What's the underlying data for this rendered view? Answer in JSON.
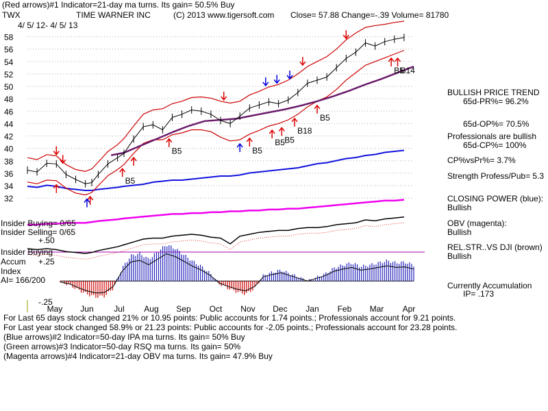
{
  "header": {
    "red_arrows_note": "(Red arrows)#1 Indicator=21-day ma turns. Its gain= 50.5% Buy",
    "ticker": "TWX",
    "company": "TIME WARNER INC",
    "copyright": "(C) 2013 www.tigersoft.com",
    "quote": "Close= 57.88 Change=-.39 Volume= 81780",
    "date_range": "4/ 5/ 12- 4/ 5/ 13"
  },
  "right_panel": {
    "trend_title": "BULLISH PRICE TREND",
    "pr": "65d-PR%= 96.2%",
    "op": "65d-OP%= 70.5%",
    "pros_line": "Professionals are bullish",
    "cp": "65d-CP%= 100%",
    "cpvspr": "CP%vsPr%= 3.7%",
    "strength": "Strength Profess/Pub= 5.3",
    "closing_power_label": "CLOSING POWER (blue):",
    "closing_power_value": "Bullish",
    "obv_label": "OBV (magenta):",
    "obv_value": "Bullish",
    "relstr_label": "REL.STR..VS DJI (brown)",
    "relstr_value": "Bullish",
    "accum_label": "Currently Accumulation",
    "ip": "IP= .173"
  },
  "left_labels": {
    "insider_buying_ratio": "Insider Buying= 0/65",
    "insider_selling_ratio": "Insider Selling= 0/65",
    "plus50": "+.50",
    "insider_buying": "Insider Buying",
    "accum": "Accum",
    "plus25": "+.25",
    "index": "Index",
    "ai": "AI= 166/200",
    "minus25": "-.25"
  },
  "footer": {
    "line1": "For Last 65 days stock changed 21% or 10.95 points: Public accounts for 1.74 points.; Professionals account for 9.21 points.",
    "line2": "For Last year stock changed 58.9% or 21.23 points: Public accounts for -2.05 points.; Professionals account for 23.28 points.",
    "line3": "(Blue arrows)#2 Indicator=50-day IPA ma turns. Its gain= 50% Buy",
    "line4": "(Green arrows)#3 Indicator=50-day RSQ ma turns. Its gain= 50%",
    "line5": "(Magenta arrows)#4 Indicator=21-day OBV ma turns. Its gain= 47.9% Buy"
  },
  "colors": {
    "price": "#000000",
    "band": "#cc0000",
    "ma50": "#6a1b6a",
    "closing_power": "#1111dd",
    "obv": "#ee00ee",
    "accum_pos": "#2222bb",
    "accum_neg": "#cc0000",
    "signal_red": "#dd0000",
    "signal_blue": "#0000dd"
  },
  "chart_data": {
    "type": "line",
    "title": "TWX TIME WARNER INC",
    "y_ticks": [
      58,
      56,
      54,
      52,
      50,
      48,
      46,
      44,
      42,
      40,
      38,
      36,
      34,
      32
    ],
    "ylim": [
      30.8,
      59.5
    ],
    "x_ticks": [
      "May",
      "Jun",
      "Jul",
      "Aug",
      "Sep",
      "Oct",
      "Nov",
      "Dec",
      "Jan",
      "Feb",
      "Mar",
      "Apr"
    ],
    "x_tick_months": [
      0.85,
      1.85,
      2.85,
      3.85,
      4.85,
      5.85,
      6.85,
      7.85,
      8.85,
      9.85,
      10.85,
      11.85
    ],
    "xlim_months": [
      0,
      12
    ],
    "price_x": [
      0,
      0.3,
      0.6,
      0.9,
      1.2,
      1.5,
      1.8,
      2.0,
      2.2,
      2.5,
      2.8,
      3.0,
      3.3,
      3.6,
      3.9,
      4.2,
      4.5,
      4.8,
      5.1,
      5.4,
      5.7,
      6.0,
      6.3,
      6.6,
      6.9,
      7.2,
      7.5,
      7.8,
      8.1,
      8.4,
      8.7,
      9.0,
      9.3,
      9.6,
      9.9,
      10.2,
      10.5,
      10.8,
      11.1,
      11.4,
      11.7
    ],
    "price": [
      36.5,
      36.2,
      37.6,
      37.5,
      35.8,
      35.0,
      34.3,
      34.5,
      35.8,
      37.5,
      38.5,
      39.2,
      41.5,
      43.5,
      43.8,
      43.0,
      45.0,
      45.5,
      46.2,
      46.0,
      45.5,
      44.5,
      44.0,
      45.2,
      46.5,
      47.0,
      47.5,
      47.2,
      47.8,
      49.0,
      50.5,
      51.0,
      51.5,
      53.0,
      54.5,
      55.5,
      57.0,
      56.5,
      57.2,
      57.6,
      57.88
    ],
    "upper_band": [
      38.5,
      38.2,
      39.0,
      38.8,
      37.4,
      36.6,
      36.3,
      36.7,
      37.8,
      39.5,
      40.6,
      41.6,
      43.6,
      45.5,
      46.2,
      46.4,
      47.2,
      47.6,
      48.2,
      48.3,
      48.1,
      47.6,
      47.3,
      47.6,
      48.6,
      49.2,
      49.9,
      50.3,
      51.0,
      52.0,
      53.2,
      54.0,
      54.8,
      56.0,
      57.5,
      58.6,
      59.5,
      59.8,
      60.0,
      60.3,
      60.5
    ],
    "lower_band": [
      34.6,
      34.3,
      34.9,
      34.8,
      33.6,
      32.8,
      32.5,
      32.9,
      34.0,
      35.6,
      36.6,
      37.4,
      39.2,
      40.8,
      41.4,
      41.4,
      42.2,
      42.5,
      43.0,
      43.0,
      42.7,
      41.8,
      41.2,
      41.4,
      42.3,
      42.9,
      43.6,
      44.0,
      44.6,
      45.5,
      46.7,
      47.6,
      48.3,
      49.5,
      51.0,
      52.2,
      53.4,
      54.0,
      54.6,
      55.2,
      55.8
    ],
    "ma50_x": [
      2.6,
      3.0,
      3.5,
      4.0,
      4.5,
      5.0,
      5.5,
      6.0,
      6.5,
      7.0,
      7.5,
      8.0,
      8.5,
      9.0,
      9.5,
      10.0,
      10.5,
      11.0,
      11.5,
      12.0
    ],
    "ma50": [
      38.9,
      39.3,
      40.4,
      41.5,
      42.6,
      43.6,
      44.4,
      44.6,
      44.8,
      45.3,
      45.8,
      46.3,
      46.9,
      47.6,
      48.4,
      49.3,
      50.3,
      51.2,
      52.2,
      53.2
    ],
    "closing_power": [
      52,
      51,
      53,
      52,
      50,
      49,
      48,
      48,
      49,
      50,
      51,
      52,
      53,
      54,
      56,
      57,
      58,
      58,
      59,
      60,
      61,
      62,
      62,
      63,
      65,
      66,
      67,
      68,
      69,
      70,
      72,
      74,
      75,
      77,
      79,
      80,
      82,
      83,
      85,
      86,
      87
    ],
    "obv": [
      40,
      40,
      41,
      41,
      42,
      42,
      42,
      43,
      44,
      45,
      46,
      47,
      48,
      49,
      50,
      51,
      52,
      52,
      53,
      53,
      54,
      54,
      55,
      55,
      56,
      56,
      57,
      57,
      58,
      58,
      59,
      60,
      61,
      62,
      63,
      64,
      65,
      66,
      67,
      67,
      68
    ],
    "rel_strength": [
      30,
      29,
      30,
      29,
      27,
      26,
      25,
      26,
      28,
      30,
      32,
      34,
      37,
      40,
      41,
      41,
      43,
      44,
      45,
      44,
      42,
      41,
      35,
      43,
      45,
      47,
      48,
      49,
      49,
      51,
      52,
      52,
      53,
      55,
      56,
      57,
      60,
      59,
      61,
      62,
      63
    ],
    "accum_index": [
      -0.02,
      -0.05,
      -0.12,
      -0.18,
      -0.22,
      -0.21,
      -0.1,
      0.18,
      0.35,
      0.38,
      0.3,
      0.4,
      0.5,
      0.45,
      0.36,
      0.27,
      0.2,
      0.1,
      -0.04,
      -0.1,
      -0.15,
      -0.18,
      -0.1,
      0.08,
      0.12,
      0.15,
      0.1,
      0.05,
      0.0,
      0.05,
      0.1,
      0.18,
      0.22,
      0.25,
      0.2,
      0.22,
      0.25,
      0.28,
      0.25,
      0.26,
      0.22
    ],
    "accum_ylim": [
      -0.3,
      0.55
    ],
    "signals": [
      {
        "t": 0.9,
        "kind": "sell",
        "color": "red",
        "label": ""
      },
      {
        "t": 1.1,
        "kind": "sell",
        "color": "red",
        "label": ""
      },
      {
        "t": 0.9,
        "kind": "buy",
        "color": "red",
        "label": ""
      },
      {
        "t": 1.95,
        "kind": "buy",
        "color": "red",
        "label": ""
      },
      {
        "t": 1.85,
        "kind": "buy",
        "color": "blue",
        "label": ""
      },
      {
        "t": 2.95,
        "kind": "buy",
        "color": "red",
        "label": "B5"
      },
      {
        "t": 3.3,
        "kind": "buy",
        "color": "red",
        "label": ""
      },
      {
        "t": 4.4,
        "kind": "buy",
        "color": "red",
        "label": "B5"
      },
      {
        "t": 6.6,
        "kind": "buy",
        "color": "blue",
        "label": ""
      },
      {
        "t": 6.9,
        "kind": "buy",
        "color": "red",
        "label": "B5"
      },
      {
        "t": 7.6,
        "kind": "buy",
        "color": "red",
        "label": "B5"
      },
      {
        "t": 7.9,
        "kind": "buy",
        "color": "red",
        "label": "B5"
      },
      {
        "t": 8.3,
        "kind": "buy",
        "color": "red",
        "label": "B18"
      },
      {
        "t": 9.0,
        "kind": "buy",
        "color": "red",
        "label": "B5"
      },
      {
        "t": 11.3,
        "kind": "buy",
        "color": "red",
        "label": "B5"
      },
      {
        "t": 11.5,
        "kind": "buy",
        "color": "red",
        "label": "B14"
      },
      {
        "t": 7.4,
        "kind": "sell",
        "color": "blue",
        "label": ""
      },
      {
        "t": 7.75,
        "kind": "sell",
        "color": "blue",
        "label": ""
      },
      {
        "t": 8.15,
        "kind": "sell",
        "color": "blue",
        "label": ""
      },
      {
        "t": 8.55,
        "kind": "sell",
        "color": "red",
        "label": ""
      },
      {
        "t": 9.9,
        "kind": "sell",
        "color": "red",
        "label": ""
      },
      {
        "t": 6.1,
        "kind": "sell",
        "color": "red",
        "label": ""
      }
    ]
  }
}
